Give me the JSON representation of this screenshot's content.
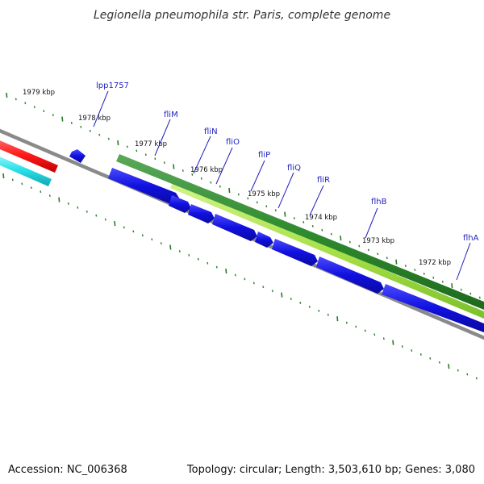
{
  "title": "Legionella pneumophila str. Paris, complete genome",
  "footer": {
    "accession": "Accession: NC_006368",
    "topology": "Topology: circular; Length: 3,503,610 bp; Genes: 3,080"
  },
  "ticks": [
    {
      "label": "1979 kbp",
      "kbp": 1979
    },
    {
      "label": "1978 kbp",
      "kbp": 1978
    },
    {
      "label": "1977 kbp",
      "kbp": 1977
    },
    {
      "label": "1976 kbp",
      "kbp": 1976
    },
    {
      "label": "1975 kbp",
      "kbp": 1975
    },
    {
      "label": "1974 kbp",
      "kbp": 1974
    },
    {
      "label": "1973 kbp",
      "kbp": 1973
    },
    {
      "label": "1972 kbp",
      "kbp": 1972
    }
  ],
  "genes": [
    {
      "name": "lpp1757"
    },
    {
      "name": "fliM"
    },
    {
      "name": "fliN"
    },
    {
      "name": "fliO"
    },
    {
      "name": "fliP"
    },
    {
      "name": "fliQ"
    },
    {
      "name": "fliR"
    },
    {
      "name": "flhB"
    },
    {
      "name": "flhA"
    }
  ],
  "colors": {
    "gene_cds": "#1010e0",
    "operon_dark_green": "#2e8b2e",
    "operon_light_green": "#a8e04a",
    "other_red": "#ff1a1a",
    "other_cyan": "#29e0e8",
    "backbone": "#8a8a8a",
    "tick_mark": "#2a7a2a",
    "label_line": "#1f1fbf"
  }
}
